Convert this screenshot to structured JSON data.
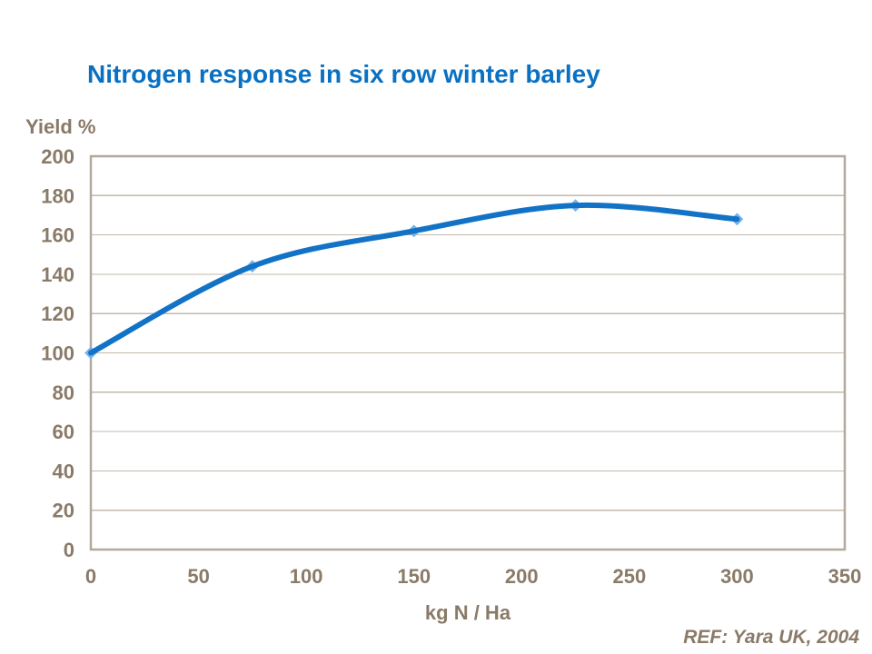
{
  "page": {
    "background": "#ffffff"
  },
  "footer": {
    "ref_label": "REF: Yara UK, 2004"
  },
  "chart_data": {
    "type": "scatter",
    "line_style": "smooth",
    "title": "Nitrogen response in six row winter barley",
    "xlabel": "kg N / Ha",
    "ylabel": "Yield %",
    "x": [
      0,
      75,
      150,
      225,
      300
    ],
    "y": [
      100,
      144,
      162,
      175,
      168
    ],
    "xlim": [
      0,
      350
    ],
    "ylim": [
      0,
      200
    ],
    "xticks": [
      0,
      50,
      100,
      150,
      200,
      250,
      300,
      350
    ],
    "yticks": [
      0,
      20,
      40,
      60,
      80,
      100,
      120,
      140,
      160,
      180,
      200
    ],
    "grid": "horizontal",
    "legend": "none",
    "colors": {
      "title": "#0a70c2",
      "line": "#1273c6",
      "marker": "#74b2ef",
      "axis_text": "#8a7a68",
      "gridline": "#c3b9ab",
      "plot_border": "#b2a89b"
    }
  }
}
